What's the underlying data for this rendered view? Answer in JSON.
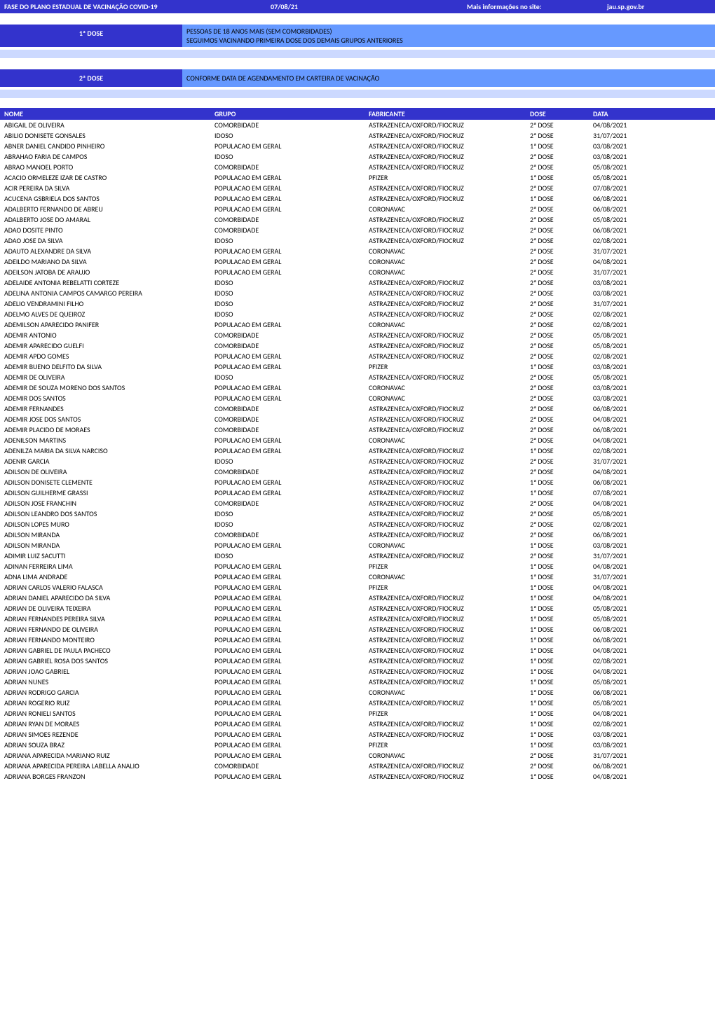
{
  "header": {
    "left": "FASE DO PLANO ESTADUAL DE VACINAÇÃO COVID-19",
    "mid": "07/08/21",
    "right_label": "Mais informações no site:",
    "right_val": "jau.sp.gov.br",
    "bg_color": "#3333cc",
    "text_color": "#ffffff"
  },
  "dose1": {
    "label": "1ª DOSE",
    "line1": "PESSOAS DE 18 ANOS MAIS (SEM COMORBIDADES)",
    "line2": "SEGUIMOS VACINANDO PRIMEIRA DOSE DOS DEMAIS GRUPOS ANTERIORES"
  },
  "dose2": {
    "label": "2ª DOSE",
    "line1": "CONFORME DATA DE AGENDAMENTO EM CARTEIRA DE VACINAÇÃO"
  },
  "columns": [
    "NOME",
    "GRUPO",
    "FABRICANTE",
    "DOSE",
    "DATA"
  ],
  "styling": {
    "header_bg": "#3333cc",
    "header_fg": "#ffffff",
    "dose_text_bg": "#6699ff",
    "light_strip": "#ccd9ff",
    "body_fontsize": 10,
    "header_fontsize": 10
  },
  "rows": [
    [
      "ABIGAIL DE OLIVEIRA",
      "COMORBIDADE",
      "ASTRAZENECA/OXFORD/FIOCRUZ",
      "2ª DOSE",
      "04/08/2021"
    ],
    [
      "ABILIO DONISETE GONSALES",
      "IDOSO",
      "ASTRAZENECA/OXFORD/FIOCRUZ",
      "2ª DOSE",
      "31/07/2021"
    ],
    [
      "ABNER DANIEL CANDIDO PINHEIRO",
      "POPULACAO EM GERAL",
      "ASTRAZENECA/OXFORD/FIOCRUZ",
      "1ª DOSE",
      "03/08/2021"
    ],
    [
      "ABRAHAO FARIA DE CAMPOS",
      "IDOSO",
      "ASTRAZENECA/OXFORD/FIOCRUZ",
      "2ª DOSE",
      "03/08/2021"
    ],
    [
      "ABRAO MANOEL PORTO",
      "COMORBIDADE",
      "ASTRAZENECA/OXFORD/FIOCRUZ",
      "2ª DOSE",
      "05/08/2021"
    ],
    [
      "ACACIO ORMELEZE IZAR DE CASTRO",
      "POPULACAO EM GERAL",
      "PFIZER",
      "1ª DOSE",
      "05/08/2021"
    ],
    [
      "ACIR PEREIRA DA SILVA",
      "POPULACAO EM GERAL",
      "ASTRAZENECA/OXFORD/FIOCRUZ",
      "2ª DOSE",
      "07/08/2021"
    ],
    [
      "ACUCENA GSBRIELA DOS SANTOS",
      "POPULACAO EM GERAL",
      "ASTRAZENECA/OXFORD/FIOCRUZ",
      "1ª DOSE",
      "06/08/2021"
    ],
    [
      "ADALBERTO FERNANDO DE ABREU",
      "POPULACAO EM GERAL",
      "CORONAVAC",
      "2ª DOSE",
      "06/08/2021"
    ],
    [
      "ADALBERTO JOSE DO AMARAL",
      "COMORBIDADE",
      "ASTRAZENECA/OXFORD/FIOCRUZ",
      "2ª DOSE",
      "05/08/2021"
    ],
    [
      "ADAO DOSITE PINTO",
      "COMORBIDADE",
      "ASTRAZENECA/OXFORD/FIOCRUZ",
      "2ª DOSE",
      "06/08/2021"
    ],
    [
      "ADAO JOSE DA SILVA",
      "IDOSO",
      "ASTRAZENECA/OXFORD/FIOCRUZ",
      "2ª DOSE",
      "02/08/2021"
    ],
    [
      "ADAUTO ALEXANDRE DA SILVA",
      "POPULACAO EM GERAL",
      "CORONAVAC",
      "2ª DOSE",
      "31/07/2021"
    ],
    [
      "ADEILDO MARIANO DA SILVA",
      "POPULACAO EM GERAL",
      "CORONAVAC",
      "2ª DOSE",
      "04/08/2021"
    ],
    [
      "ADEILSON JATOBA DE ARAUJO",
      "POPULACAO EM GERAL",
      "CORONAVAC",
      "2ª DOSE",
      "31/07/2021"
    ],
    [
      "ADELAIDE ANTONIA REBELATTI CORTEZE",
      "IDOSO",
      "ASTRAZENECA/OXFORD/FIOCRUZ",
      "2ª DOSE",
      "03/08/2021"
    ],
    [
      "ADELINA ANTONIA CAMPOS CAMARGO PEREIRA",
      "IDOSO",
      "ASTRAZENECA/OXFORD/FIOCRUZ",
      "2ª DOSE",
      "03/08/2021"
    ],
    [
      "ADELIO VENDRAMINI FILHO",
      "IDOSO",
      "ASTRAZENECA/OXFORD/FIOCRUZ",
      "2ª DOSE",
      "31/07/2021"
    ],
    [
      "ADELMO ALVES DE QUEIROZ",
      "IDOSO",
      "ASTRAZENECA/OXFORD/FIOCRUZ",
      "2ª DOSE",
      "02/08/2021"
    ],
    [
      "ADEMILSON APARECIDO PANIFER",
      "POPULACAO EM GERAL",
      "CORONAVAC",
      "2ª DOSE",
      "02/08/2021"
    ],
    [
      "ADEMIR ANTONIO",
      "COMORBIDADE",
      "ASTRAZENECA/OXFORD/FIOCRUZ",
      "2ª DOSE",
      "05/08/2021"
    ],
    [
      "ADEMIR APARECIDO GUELFI",
      "COMORBIDADE",
      "ASTRAZENECA/OXFORD/FIOCRUZ",
      "2ª DOSE",
      "05/08/2021"
    ],
    [
      "ADEMIR APDO GOMES",
      "POPULACAO EM GERAL",
      "ASTRAZENECA/OXFORD/FIOCRUZ",
      "2ª DOSE",
      "02/08/2021"
    ],
    [
      "ADEMIR BUENO DELFITO DA SILVA",
      "POPULACAO EM GERAL",
      "PFIZER",
      "1ª DOSE",
      "03/08/2021"
    ],
    [
      "ADEMIR DE OLIVEIRA",
      "IDOSO",
      "ASTRAZENECA/OXFORD/FIOCRUZ",
      "2ª DOSE",
      "05/08/2021"
    ],
    [
      "ADEMIR DE SOUZA MORENO DOS SANTOS",
      "POPULACAO EM GERAL",
      "CORONAVAC",
      "2ª DOSE",
      "03/08/2021"
    ],
    [
      "ADEMIR DOS SANTOS",
      "POPULACAO EM GERAL",
      "CORONAVAC",
      "2ª DOSE",
      "03/08/2021"
    ],
    [
      "ADEMIR FERNANDES",
      "COMORBIDADE",
      "ASTRAZENECA/OXFORD/FIOCRUZ",
      "2ª DOSE",
      "06/08/2021"
    ],
    [
      "ADEMIR JOSE DOS SANTOS",
      "COMORBIDADE",
      "ASTRAZENECA/OXFORD/FIOCRUZ",
      "2ª DOSE",
      "04/08/2021"
    ],
    [
      "ADEMIR PLACIDO DE MORAES",
      "COMORBIDADE",
      "ASTRAZENECA/OXFORD/FIOCRUZ",
      "2ª DOSE",
      "06/08/2021"
    ],
    [
      "ADENILSON MARTINS",
      "POPULACAO EM GERAL",
      "CORONAVAC",
      "2ª DOSE",
      "04/08/2021"
    ],
    [
      "ADENILZA MARIA DA SILVA NARCISO",
      "POPULACAO EM GERAL",
      "ASTRAZENECA/OXFORD/FIOCRUZ",
      "1ª DOSE",
      "02/08/2021"
    ],
    [
      "ADENIR GARCIA",
      "IDOSO",
      "ASTRAZENECA/OXFORD/FIOCRUZ",
      "2ª DOSE",
      "31/07/2021"
    ],
    [
      "ADILSON DE OLIVEIRA",
      "COMORBIDADE",
      "ASTRAZENECA/OXFORD/FIOCRUZ",
      "2ª DOSE",
      "04/08/2021"
    ],
    [
      "ADILSON DONISETE CLEMENTE",
      "POPULACAO EM GERAL",
      "ASTRAZENECA/OXFORD/FIOCRUZ",
      "1ª DOSE",
      "06/08/2021"
    ],
    [
      "ADILSON GUILHERME GRASSI",
      "POPULACAO EM GERAL",
      "ASTRAZENECA/OXFORD/FIOCRUZ",
      "1ª DOSE",
      "07/08/2021"
    ],
    [
      "ADILSON JOSE FRANCHIN",
      "COMORBIDADE",
      "ASTRAZENECA/OXFORD/FIOCRUZ",
      "2ª DOSE",
      "04/08/2021"
    ],
    [
      "ADILSON LEANDRO DOS SANTOS",
      "IDOSO",
      "ASTRAZENECA/OXFORD/FIOCRUZ",
      "2ª DOSE",
      "05/08/2021"
    ],
    [
      "ADILSON LOPES MURO",
      "IDOSO",
      "ASTRAZENECA/OXFORD/FIOCRUZ",
      "2ª DOSE",
      "02/08/2021"
    ],
    [
      "ADILSON MIRANDA",
      "COMORBIDADE",
      "ASTRAZENECA/OXFORD/FIOCRUZ",
      "2ª DOSE",
      "06/08/2021"
    ],
    [
      "ADILSON MIRANDA",
      "POPULACAO EM GERAL",
      "CORONAVAC",
      "1ª DOSE",
      "03/08/2021"
    ],
    [
      "ADIMIR LUIZ SACUTTI",
      "IDOSO",
      "ASTRAZENECA/OXFORD/FIOCRUZ",
      "2ª DOSE",
      "31/07/2021"
    ],
    [
      "ADINAN FERREIRA LIMA",
      "POPULACAO EM GERAL",
      "PFIZER",
      "1ª DOSE",
      "04/08/2021"
    ],
    [
      "ADNA LIMA ANDRADE",
      "POPULACAO EM GERAL",
      "CORONAVAC",
      "1ª DOSE",
      "31/07/2021"
    ],
    [
      "ADRIAN CARLOS VALERIO FALASCA",
      "POPULACAO EM GERAL",
      "PFIZER",
      "1ª DOSE",
      "04/08/2021"
    ],
    [
      "ADRIAN DANIEL APARECIDO DA SILVA",
      "POPULACAO EM GERAL",
      "ASTRAZENECA/OXFORD/FIOCRUZ",
      "1ª DOSE",
      "04/08/2021"
    ],
    [
      "ADRIAN DE OLIVEIRA TEIXEIRA",
      "POPULACAO EM GERAL",
      "ASTRAZENECA/OXFORD/FIOCRUZ",
      "1ª DOSE",
      "05/08/2021"
    ],
    [
      "ADRIAN FERNANDES PEREIRA SILVA",
      "POPULACAO EM GERAL",
      "ASTRAZENECA/OXFORD/FIOCRUZ",
      "1ª DOSE",
      "05/08/2021"
    ],
    [
      "ADRIAN FERNANDO DE OLIVEIRA",
      "POPULACAO EM GERAL",
      "ASTRAZENECA/OXFORD/FIOCRUZ",
      "1ª DOSE",
      "06/08/2021"
    ],
    [
      "ADRIAN FERNANDO MONTEIRO",
      "POPULACAO EM GERAL",
      "ASTRAZENECA/OXFORD/FIOCRUZ",
      "1ª DOSE",
      "06/08/2021"
    ],
    [
      "ADRIAN GABRIEL DE PAULA PACHECO",
      "POPULACAO EM GERAL",
      "ASTRAZENECA/OXFORD/FIOCRUZ",
      "1ª DOSE",
      "04/08/2021"
    ],
    [
      "ADRIAN GABRIEL ROSA DOS SANTOS",
      "POPULACAO EM GERAL",
      "ASTRAZENECA/OXFORD/FIOCRUZ",
      "1ª DOSE",
      "02/08/2021"
    ],
    [
      "ADRIAN JOAO GABRIEL",
      "POPULACAO EM GERAL",
      "ASTRAZENECA/OXFORD/FIOCRUZ",
      "1ª DOSE",
      "04/08/2021"
    ],
    [
      "ADRIAN NUNES",
      "POPULACAO EM GERAL",
      "ASTRAZENECA/OXFORD/FIOCRUZ",
      "1ª DOSE",
      "05/08/2021"
    ],
    [
      "ADRIAN RODRIGO GARCIA",
      "POPULACAO EM GERAL",
      "CORONAVAC",
      "1ª DOSE",
      "06/08/2021"
    ],
    [
      "ADRIAN ROGERIO RUIZ",
      "POPULACAO EM GERAL",
      "ASTRAZENECA/OXFORD/FIOCRUZ",
      "1ª DOSE",
      "05/08/2021"
    ],
    [
      "ADRIAN RONIELI SANTOS",
      "POPULACAO EM GERAL",
      "PFIZER",
      "1ª DOSE",
      "04/08/2021"
    ],
    [
      "ADRIAN RYAN DE MORAES",
      "POPULACAO EM GERAL",
      "ASTRAZENECA/OXFORD/FIOCRUZ",
      "1ª DOSE",
      "02/08/2021"
    ],
    [
      "ADRIAN SIMOES REZENDE",
      "POPULACAO EM GERAL",
      "ASTRAZENECA/OXFORD/FIOCRUZ",
      "1ª DOSE",
      "03/08/2021"
    ],
    [
      "ADRIAN SOUZA BRAZ",
      "POPULACAO EM GERAL",
      "PFIZER",
      "1ª DOSE",
      "03/08/2021"
    ],
    [
      "ADRIANA APARECIDA MARIANO RUIZ",
      "POPULACAO EM GERAL",
      "CORONAVAC",
      "2ª DOSE",
      "31/07/2021"
    ],
    [
      "ADRIANA APARECIDA PEREIRA LABELLA ANALIO",
      "COMORBIDADE",
      "ASTRAZENECA/OXFORD/FIOCRUZ",
      "2ª DOSE",
      "06/08/2021"
    ],
    [
      "ADRIANA BORGES FRANZON",
      "POPULACAO EM GERAL",
      "ASTRAZENECA/OXFORD/FIOCRUZ",
      "1ª DOSE",
      "04/08/2021"
    ]
  ]
}
